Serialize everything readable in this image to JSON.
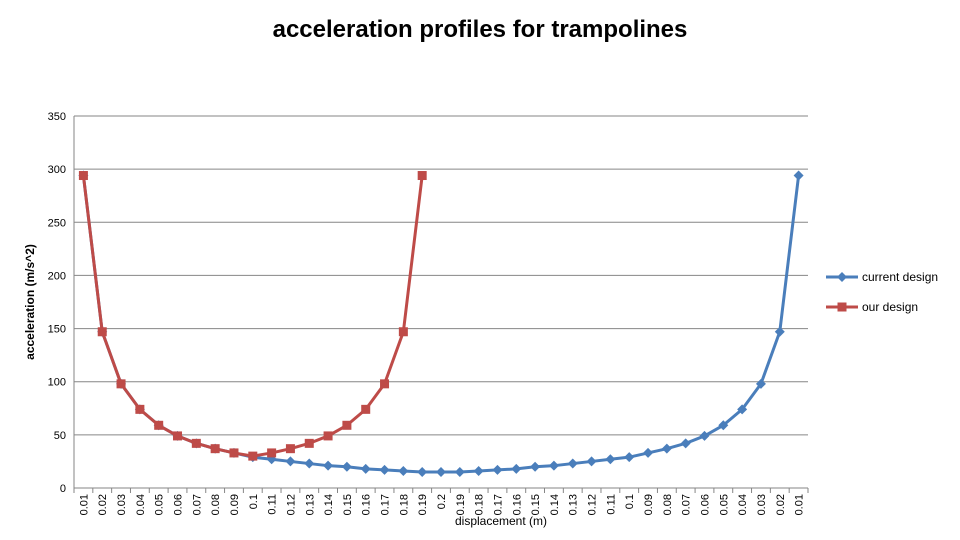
{
  "chart_data": {
    "type": "line",
    "title": "acceleration profiles for trampolines",
    "xlabel": "displacement (m)",
    "ylabel": "acceleration (m/s^2)",
    "ylim": [
      0,
      350
    ],
    "yticks": [
      0,
      50,
      100,
      150,
      200,
      250,
      300,
      350
    ],
    "grid": true,
    "legend_position": "right",
    "categories": [
      "0.01",
      "0.02",
      "0.03",
      "0.04",
      "0.05",
      "0.06",
      "0.07",
      "0.08",
      "0.09",
      "0.1",
      "0.11",
      "0.12",
      "0.13",
      "0.14",
      "0.15",
      "0.16",
      "0.17",
      "0.18",
      "0.19",
      "0.2",
      "0.19",
      "0.18",
      "0.17",
      "0.16",
      "0.15",
      "0.14",
      "0.13",
      "0.12",
      "0.11",
      "0.1",
      "0.09",
      "0.08",
      "0.07",
      "0.06",
      "0.05",
      "0.04",
      "0.03",
      "0.02",
      "0.01"
    ],
    "series": [
      {
        "name": "current design",
        "color": "#4a7ebb",
        "marker": "diamond",
        "values": [
          294,
          147,
          98,
          74,
          59,
          49,
          42,
          37,
          33,
          29,
          27,
          25,
          23,
          21,
          20,
          18,
          17,
          16,
          15,
          15,
          15,
          16,
          17,
          18,
          20,
          21,
          23,
          25,
          27,
          29,
          33,
          37,
          42,
          49,
          59,
          74,
          98,
          147,
          294
        ]
      },
      {
        "name": "our design",
        "color": "#be4b48",
        "marker": "square",
        "values": [
          294,
          147,
          98,
          74,
          59,
          49,
          42,
          37,
          33,
          30,
          33,
          37,
          42,
          49,
          59,
          74,
          98,
          147,
          294,
          null,
          null,
          null,
          null,
          null,
          null,
          null,
          null,
          null,
          null,
          null,
          null,
          null,
          null,
          null,
          null,
          null,
          null,
          null,
          null
        ]
      }
    ]
  }
}
